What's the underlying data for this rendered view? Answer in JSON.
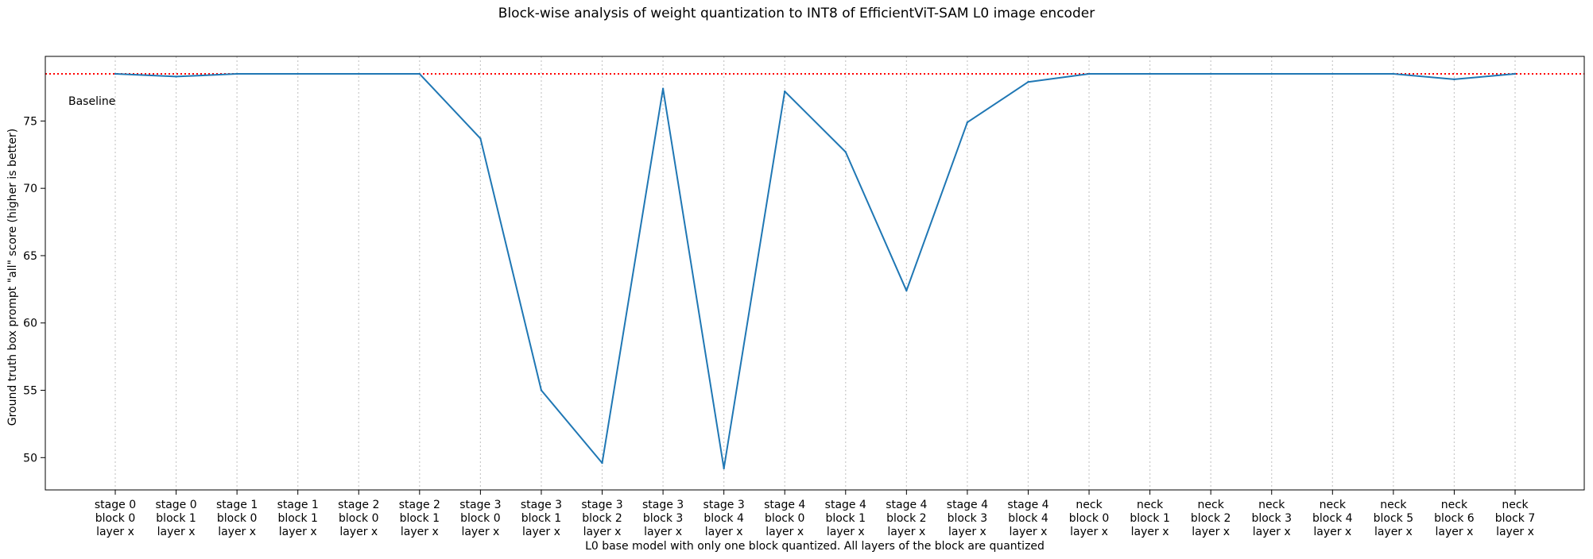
{
  "chart_data": {
    "type": "line",
    "title": "Block-wise analysis of weight quantization to INT8 of EfficientViT-SAM L0 image encoder",
    "xlabel": "L0 base model with only one block quantized. All layers of the block are quantized",
    "ylabel": "Ground truth box prompt \"all\" score (higher is better)",
    "ylim": [
      47.6,
      79.8
    ],
    "yticks": [
      50,
      55,
      60,
      65,
      70,
      75
    ],
    "grid": {
      "x": "dotted-vertical",
      "y": false
    },
    "categories": [
      [
        "stage 0",
        "block 0",
        "layer x"
      ],
      [
        "stage 0",
        "block 1",
        "layer x"
      ],
      [
        "stage 1",
        "block 0",
        "layer x"
      ],
      [
        "stage 1",
        "block 1",
        "layer x"
      ],
      [
        "stage 2",
        "block 0",
        "layer x"
      ],
      [
        "stage 2",
        "block 1",
        "layer x"
      ],
      [
        "stage 3",
        "block 0",
        "layer x"
      ],
      [
        "stage 3",
        "block 1",
        "layer x"
      ],
      [
        "stage 3",
        "block 2",
        "layer x"
      ],
      [
        "stage 3",
        "block 3",
        "layer x"
      ],
      [
        "stage 3",
        "block 4",
        "layer x"
      ],
      [
        "stage 4",
        "block 0",
        "layer x"
      ],
      [
        "stage 4",
        "block 1",
        "layer x"
      ],
      [
        "stage 4",
        "block 2",
        "layer x"
      ],
      [
        "stage 4",
        "block 3",
        "layer x"
      ],
      [
        "stage 4",
        "block 4",
        "layer x"
      ],
      [
        "neck",
        "block 0",
        "layer x"
      ],
      [
        "neck",
        "block 1",
        "layer x"
      ],
      [
        "neck",
        "block 2",
        "layer x"
      ],
      [
        "neck",
        "block 3",
        "layer x"
      ],
      [
        "neck",
        "block 4",
        "layer x"
      ],
      [
        "neck",
        "block 5",
        "layer x"
      ],
      [
        "neck",
        "block 6",
        "layer x"
      ],
      [
        "neck",
        "block 7",
        "layer x"
      ]
    ],
    "series": [
      {
        "color": "#1f77b4",
        "values": [
          78.5,
          78.3,
          78.5,
          78.5,
          78.5,
          78.5,
          73.7,
          55.0,
          49.6,
          77.4,
          49.2,
          77.2,
          72.7,
          62.4,
          74.9,
          77.9,
          78.5,
          78.5,
          78.5,
          78.5,
          78.5,
          78.5,
          78.1,
          78.5
        ]
      }
    ],
    "baseline": {
      "value": 78.5,
      "label": "Baseline",
      "color": "#ff0000",
      "style": "dotted"
    }
  }
}
